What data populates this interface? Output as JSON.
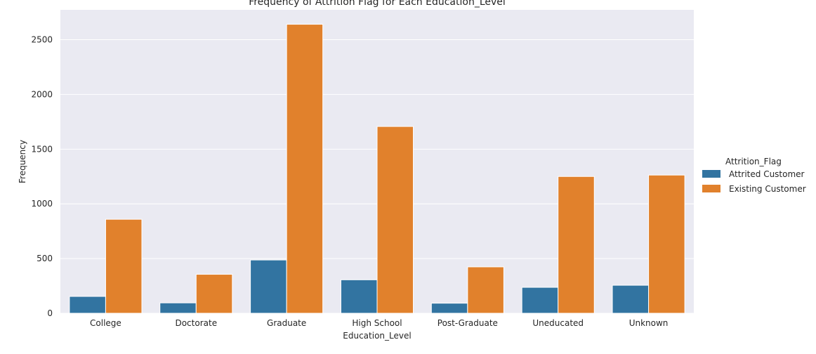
{
  "chart_data": {
    "type": "bar",
    "title": "Frequency of Attrition Flag for Each Education_Level",
    "xlabel": "Education_Level",
    "ylabel": "Frequency",
    "categories": [
      "College",
      "Doctorate",
      "Graduate",
      "High School",
      "Post-Graduate",
      "Uneducated",
      "Unknown"
    ],
    "series": [
      {
        "name": "Attrited Customer",
        "color": "#3274a1",
        "values": [
          154,
          95,
          487,
          306,
          92,
          237,
          256
        ]
      },
      {
        "name": "Existing Customer",
        "color": "#e1812c",
        "values": [
          859,
          356,
          2641,
          1707,
          424,
          1250,
          1263
        ]
      }
    ],
    "ylim": [
      0,
      2773
    ],
    "yticks": [
      0,
      500,
      1000,
      1500,
      2000,
      2500
    ],
    "grid": true,
    "legend": {
      "title": "Attrition_Flag",
      "position": "right"
    },
    "background": "#eaeaf2",
    "grid_color": "#ffffff"
  }
}
